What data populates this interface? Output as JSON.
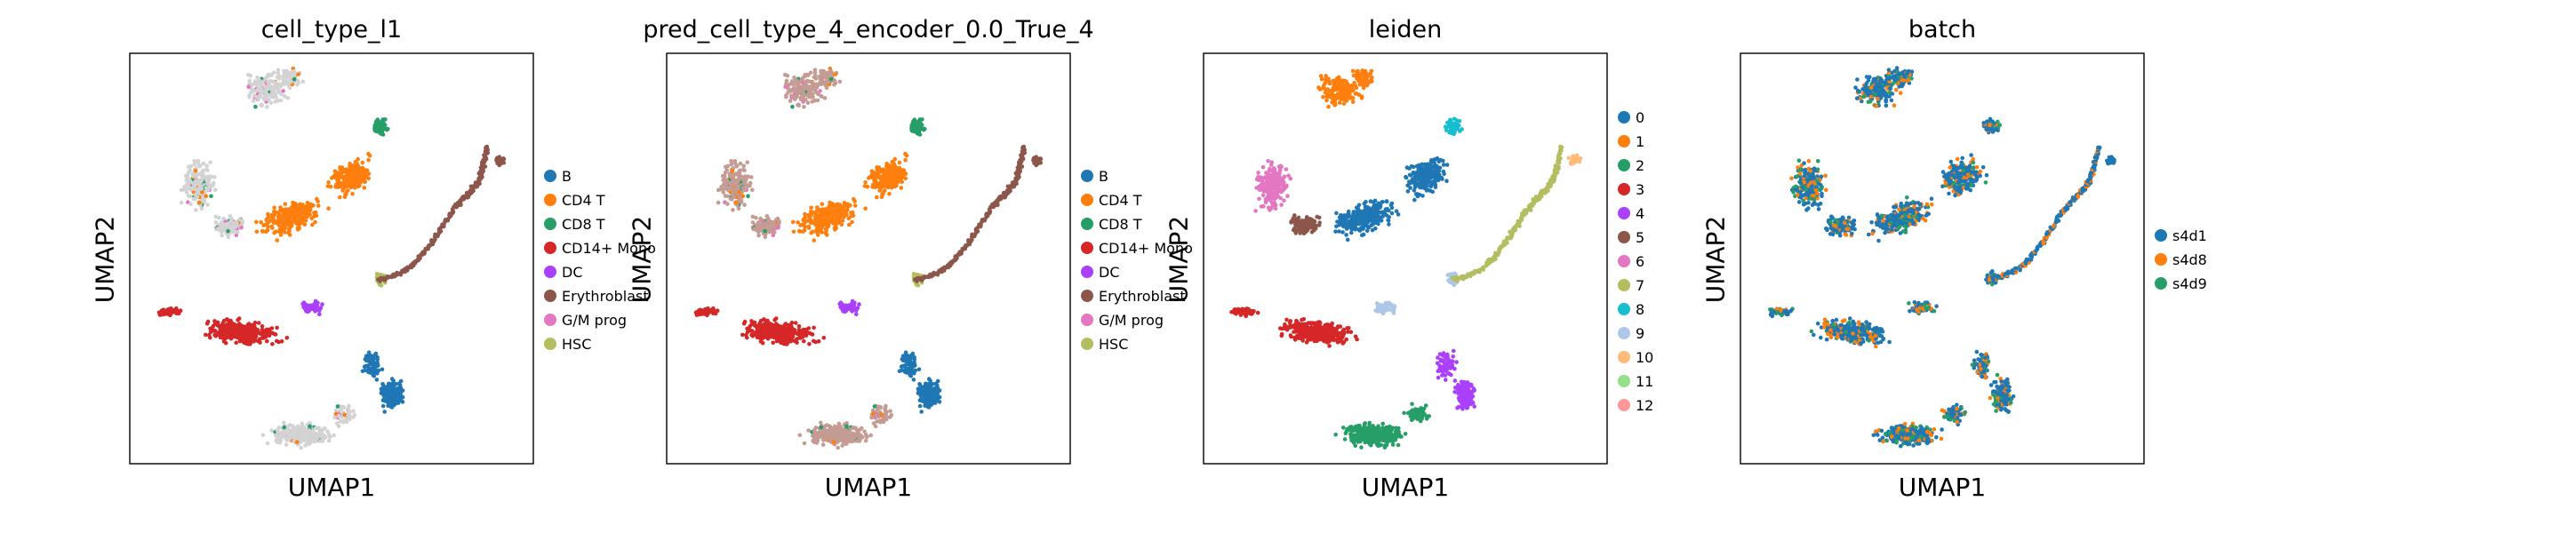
{
  "figure": {
    "panels": [
      {
        "title": "cell_type_l1",
        "xlabel": "UMAP1",
        "ylabel": "UMAP2",
        "legend": [
          "B",
          "CD4 T",
          "CD8 T",
          "CD14+ Mono",
          "DC",
          "Erythroblast",
          "G/M prog",
          "HSC"
        ],
        "colors": [
          "#1f77b4",
          "#ff7f0e",
          "#279e68",
          "#d62728",
          "#aa40fc",
          "#8c564b",
          "#e377c2",
          "#b5bd61"
        ],
        "unlabeled_color": "#d3d3d3"
      },
      {
        "title": "pred_cell_type_4_encoder_0.0_True_4",
        "xlabel": "UMAP1",
        "ylabel": "UMAP2",
        "legend": [
          "B",
          "CD4 T",
          "CD8 T",
          "CD14+ Mono",
          "DC",
          "Erythroblast",
          "G/M prog",
          "HSC"
        ],
        "colors": [
          "#1f77b4",
          "#ff7f0e",
          "#279e68",
          "#d62728",
          "#aa40fc",
          "#8c564b",
          "#e377c2",
          "#b5bd61"
        ],
        "unlabeled_color": "#c49c94"
      },
      {
        "title": "leiden",
        "xlabel": "UMAP1",
        "ylabel": "UMAP2",
        "legend": [
          "0",
          "1",
          "2",
          "3",
          "4",
          "5",
          "6",
          "7",
          "8",
          "9",
          "10",
          "11",
          "12"
        ],
        "colors": [
          "#1f77b4",
          "#ff7f0e",
          "#279e68",
          "#d62728",
          "#aa40fc",
          "#8c564b",
          "#e377c2",
          "#b5bd61",
          "#17becf",
          "#aec7e8",
          "#ffbb78",
          "#98df8a",
          "#ff9896"
        ]
      },
      {
        "title": "batch",
        "xlabel": "UMAP1",
        "ylabel": "UMAP2",
        "legend": [
          "s4d1",
          "s4d8",
          "s4d9"
        ],
        "colors": [
          "#1f77b4",
          "#ff7f0e",
          "#279e68"
        ]
      }
    ]
  },
  "chart_data": [
    {
      "type": "scatter",
      "title": "cell_type_l1",
      "xlabel": "UMAP1",
      "ylabel": "UMAP2",
      "ticks": "none",
      "categories": [
        "B",
        "CD4 T",
        "CD8 T",
        "CD14+ Mono",
        "DC",
        "Erythroblast",
        "G/M prog",
        "HSC"
      ],
      "legend_position": "right",
      "clusters": [
        {
          "label": "CD4 T",
          "region": "center-upper band"
        },
        {
          "label": "CD8 T",
          "region": "top-right tip"
        },
        {
          "label": "CD14+ Mono",
          "region": "left-middle band"
        },
        {
          "label": "B",
          "region": "bottom-right"
        },
        {
          "label": "Erythroblast",
          "region": "right trajectory"
        },
        {
          "label": "DC",
          "region": "center-middle"
        },
        {
          "label": "HSC",
          "region": "center-right junction"
        }
      ]
    },
    {
      "type": "scatter",
      "title": "pred_cell_type_4_encoder_0.0_True_4",
      "xlabel": "UMAP1",
      "ylabel": "UMAP2",
      "ticks": "none",
      "categories": [
        "B",
        "CD4 T",
        "CD8 T",
        "CD14+ Mono",
        "DC",
        "Erythroblast",
        "G/M prog",
        "HSC"
      ],
      "legend_position": "right"
    },
    {
      "type": "scatter",
      "title": "leiden",
      "xlabel": "UMAP1",
      "ylabel": "UMAP2",
      "ticks": "none",
      "categories": [
        "0",
        "1",
        "2",
        "3",
        "4",
        "5",
        "6",
        "7",
        "8",
        "9",
        "10",
        "11",
        "12"
      ],
      "legend_position": "right"
    },
    {
      "type": "scatter",
      "title": "batch",
      "xlabel": "UMAP1",
      "ylabel": "UMAP2",
      "ticks": "none",
      "categories": [
        "s4d1",
        "s4d8",
        "s4d9"
      ],
      "legend_position": "right"
    }
  ]
}
